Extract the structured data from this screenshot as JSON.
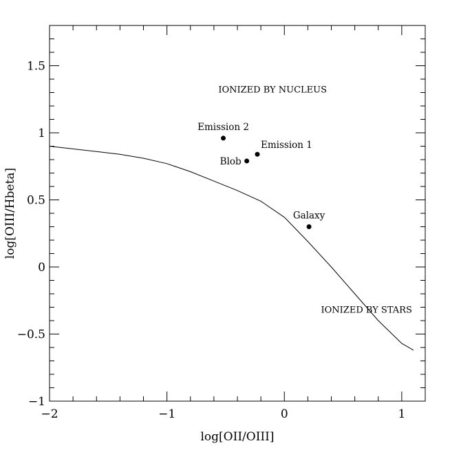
{
  "chart_data": {
    "type": "scatter",
    "title": "",
    "xlabel": "log[OII/OIII]",
    "ylabel": "log[OIII/Hbeta]",
    "xlim": [
      -2,
      1.2
    ],
    "ylim": [
      -1,
      1.8
    ],
    "x_ticks": [
      {
        "value": -2,
        "label": "−2"
      },
      {
        "value": -1,
        "label": "−1"
      },
      {
        "value": 0,
        "label": "0"
      },
      {
        "value": 1,
        "label": "1"
      }
    ],
    "y_ticks": [
      {
        "value": -1,
        "label": "−1"
      },
      {
        "value": -0.5,
        "label": "−0.5"
      },
      {
        "value": 0,
        "label": "0"
      },
      {
        "value": 0.5,
        "label": "0.5"
      },
      {
        "value": 1,
        "label": "1"
      },
      {
        "value": 1.5,
        "label": "1.5"
      }
    ],
    "x_minor_step": 0.2,
    "y_minor_step": 0.1,
    "grid": false,
    "points": [
      {
        "label": "Emission 2",
        "x": -0.52,
        "y": 0.96,
        "label_side": "above"
      },
      {
        "label": "Emission 1",
        "x": -0.23,
        "y": 0.84,
        "label_side": "upper-right"
      },
      {
        "label": "Blob",
        "x": -0.32,
        "y": 0.79,
        "label_side": "left"
      },
      {
        "label": "Galaxy",
        "x": 0.21,
        "y": 0.3,
        "label_side": "above"
      }
    ],
    "dividing_curve": {
      "x": [
        -2.0,
        -1.8,
        -1.6,
        -1.4,
        -1.2,
        -1.0,
        -0.8,
        -0.6,
        -0.4,
        -0.2,
        0.0,
        0.2,
        0.4,
        0.6,
        0.8,
        1.0,
        1.1
      ],
      "y": [
        0.9,
        0.88,
        0.86,
        0.84,
        0.81,
        0.77,
        0.71,
        0.64,
        0.57,
        0.49,
        0.37,
        0.19,
        0.0,
        -0.2,
        -0.4,
        -0.57,
        -0.62
      ]
    },
    "annotations": [
      {
        "text": "IONIZED BY NUCLEUS",
        "x": -0.1,
        "y": 1.3
      },
      {
        "text": "IONIZED BY STARS",
        "x": 0.7,
        "y": -0.34
      }
    ]
  }
}
